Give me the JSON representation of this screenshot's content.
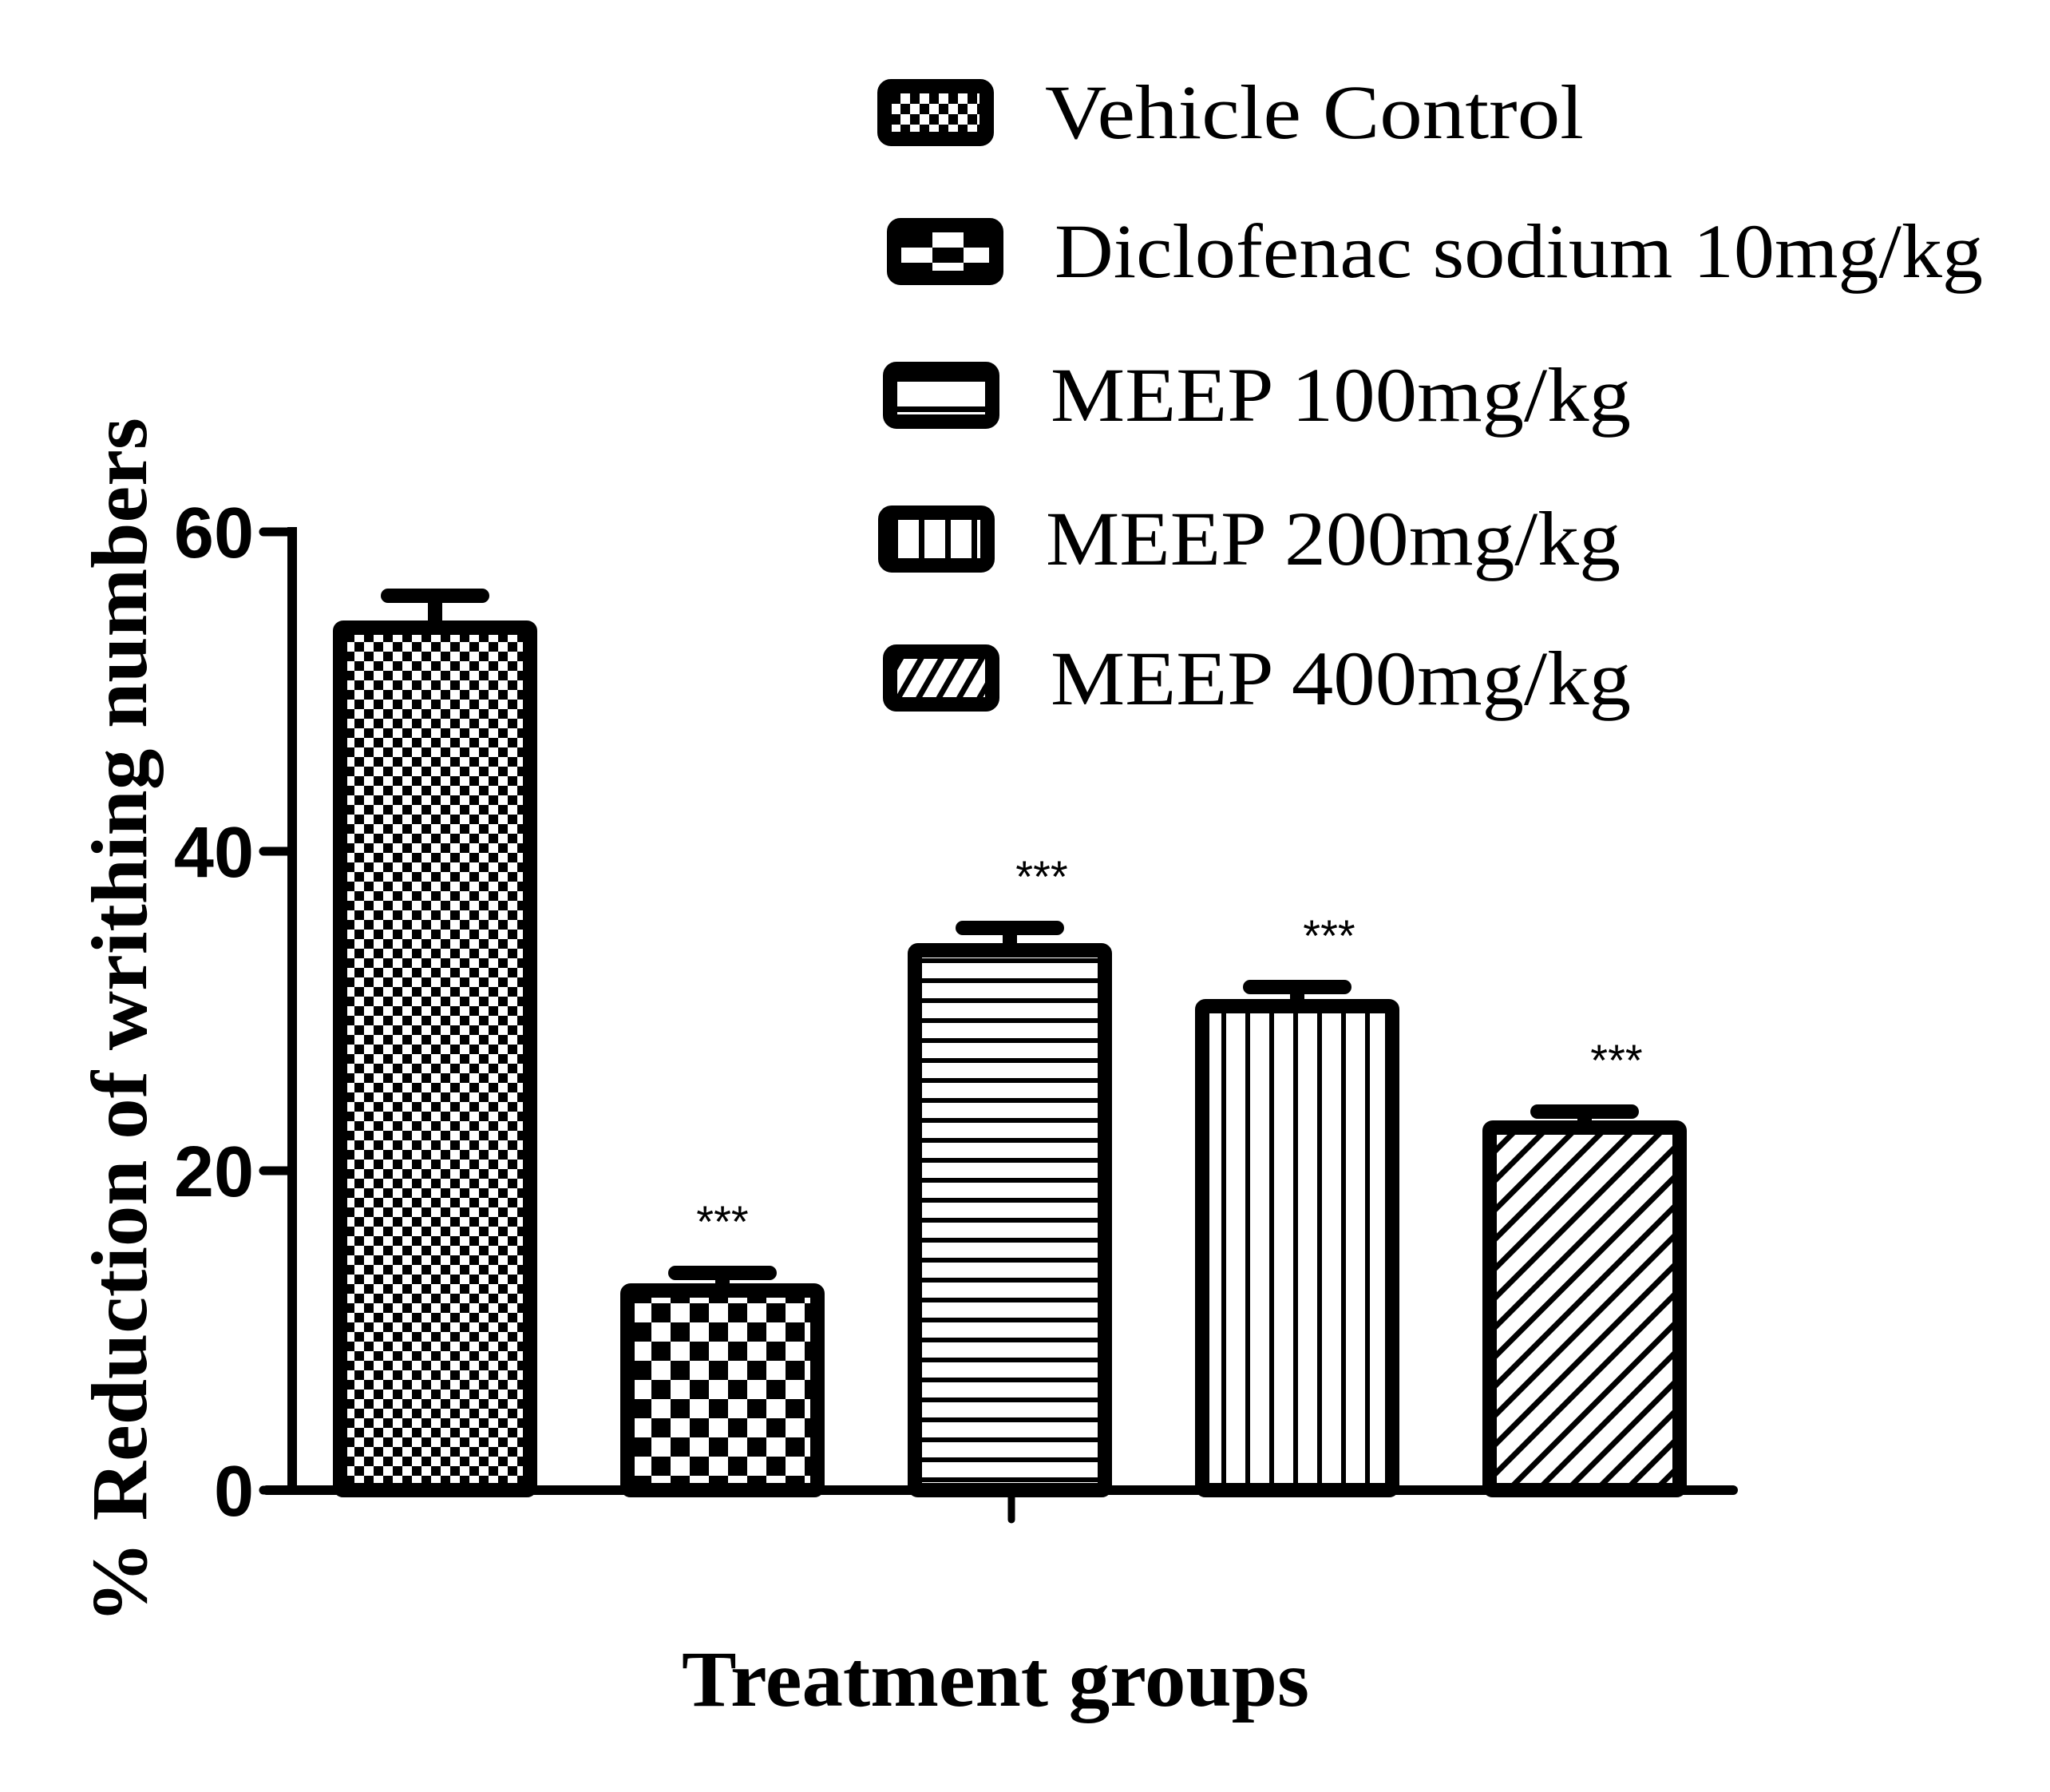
{
  "chart_data": {
    "type": "bar",
    "title": "",
    "xlabel": "Treatment groups",
    "ylabel": "% Reduction of writhing numbers",
    "ylim": [
      0,
      60
    ],
    "yticks": [
      0,
      20,
      40,
      60
    ],
    "grid": false,
    "legend_position": "top-right",
    "categories": [
      "Vehicle Control",
      "Diclofenac sodium 10mg/kg",
      "MEEP 100mg/kg",
      "MEEP 200mg/kg",
      "MEEP 400mg/kg"
    ],
    "values": [
      54.0,
      12.5,
      33.8,
      30.3,
      22.7
    ],
    "error": [
      2.0,
      1.1,
      1.4,
      1.2,
      1.0
    ],
    "annotations": [
      "",
      "***",
      "***",
      "***",
      "***"
    ],
    "patterns": [
      "fine-checker",
      "coarse-checker",
      "horizontal-lines",
      "vertical-lines",
      "diagonal-lines"
    ],
    "colors": {
      "stroke": "#000000",
      "fill": "#ffffff"
    }
  }
}
